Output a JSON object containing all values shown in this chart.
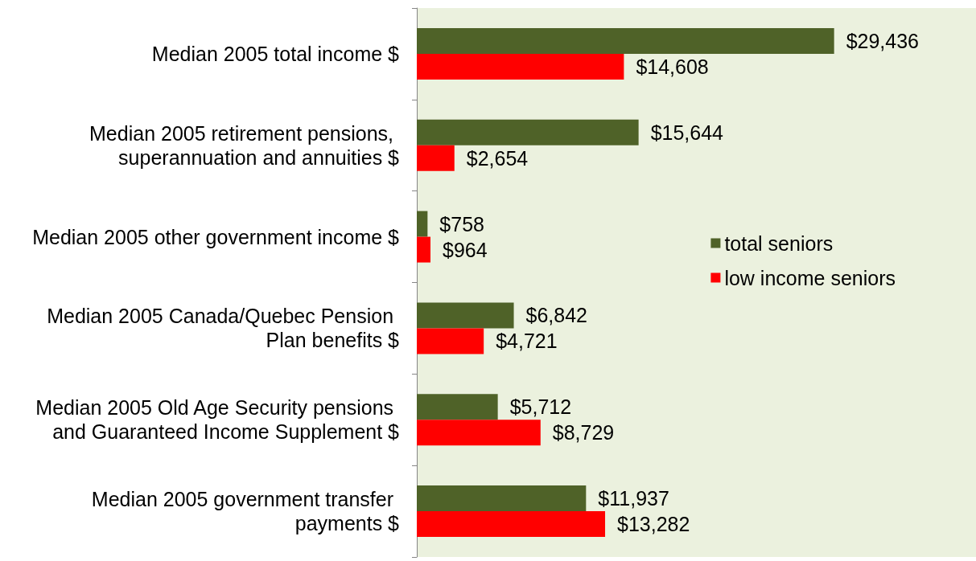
{
  "chart_data": {
    "type": "bar",
    "orientation": "horizontal",
    "categories": [
      "Median 2005 total income $",
      "Median 2005 retirement pensions, superannuation and annuities $",
      "Median 2005 other government income $",
      "Median 2005 Canada/Quebec Pension Plan benefits $",
      "Median 2005 Old Age Security pensions and Guaranteed Income Supplement $",
      "Median 2005 government transfer payments $"
    ],
    "series": [
      {
        "name": "total seniors",
        "color": "#4f6228",
        "values": [
          29436,
          15644,
          758,
          6842,
          5712,
          11937
        ],
        "value_labels": [
          "$29,436",
          "$15,644",
          "$758",
          "$6,842",
          "$5,712",
          "$11,937"
        ]
      },
      {
        "name": "low income seniors",
        "color": "#ff0000",
        "values": [
          14608,
          2654,
          964,
          4721,
          8729,
          13282
        ],
        "value_labels": [
          "$14,608",
          "$2,654",
          "$964",
          "$4,721",
          "$8,729",
          "$13,282"
        ]
      }
    ],
    "legend": "right",
    "tick_labels": "y"
  }
}
